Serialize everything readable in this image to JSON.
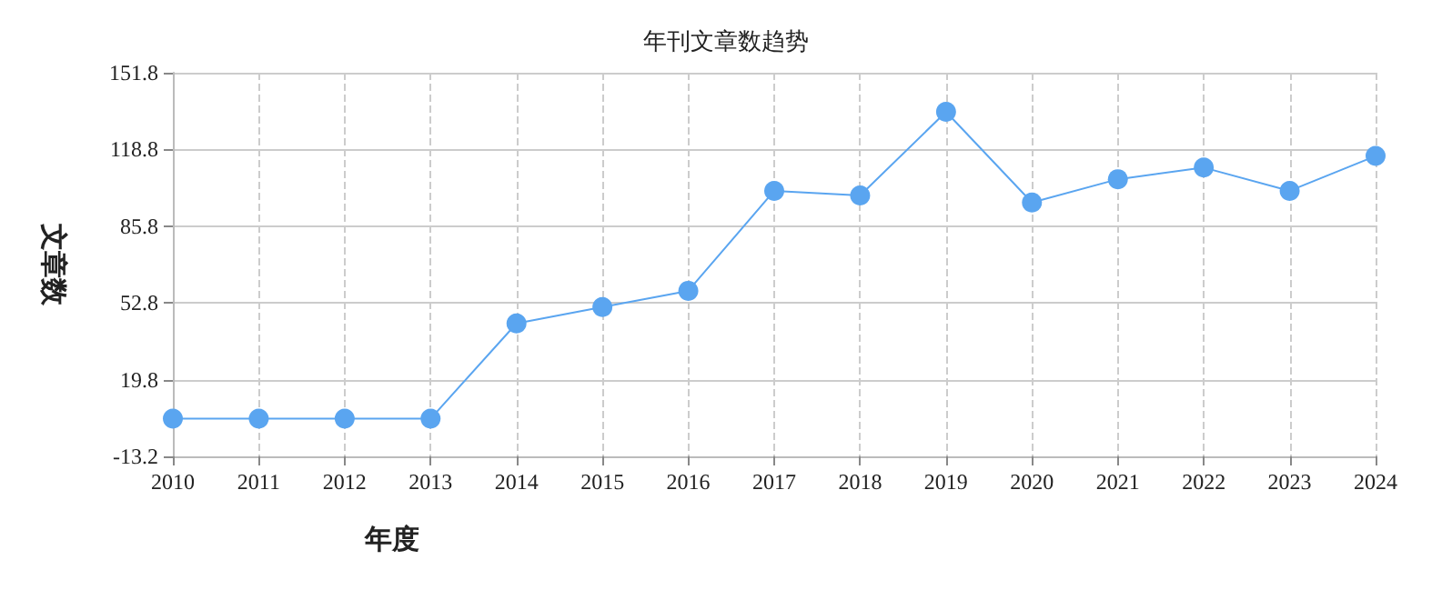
{
  "chart_data": {
    "type": "line",
    "title": "年刊文章数趋势",
    "xlabel": "年度",
    "ylabel": "文章数",
    "categories": [
      "2010",
      "2011",
      "2012",
      "2013",
      "2014",
      "2015",
      "2016",
      "2017",
      "2018",
      "2019",
      "2020",
      "2021",
      "2022",
      "2023",
      "2024"
    ],
    "series": [
      {
        "color": "#5aa5f0",
        "values": [
          3,
          3,
          3,
          3,
          44,
          51,
          58,
          101,
          99,
          135,
          96,
          106,
          111,
          101,
          116
        ]
      }
    ],
    "ylim": [
      -13.2,
      151.8
    ],
    "yticks": [
      -13.2,
      19.8,
      52.8,
      85.8,
      118.8,
      151.8
    ],
    "grid": true,
    "marker": "circle",
    "line_style": "solid"
  }
}
